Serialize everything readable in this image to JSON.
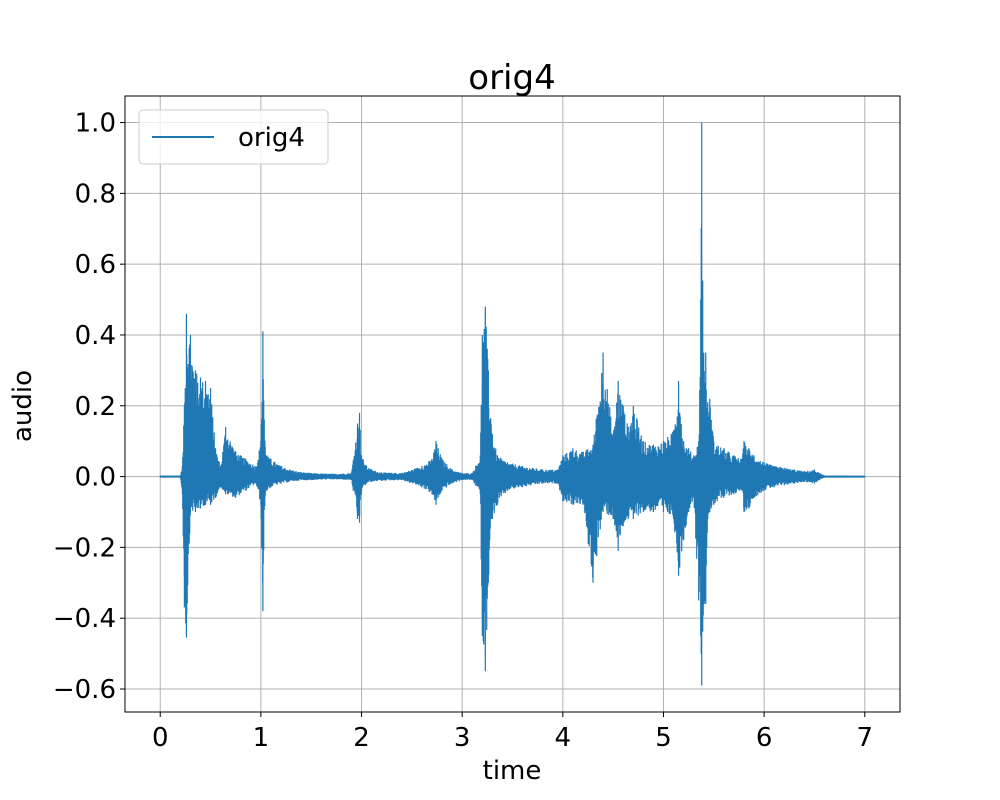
{
  "chart_data": {
    "type": "line",
    "title": "orig4",
    "xlabel": "time",
    "ylabel": "audio",
    "xlim": [
      -0.35,
      7.35
    ],
    "ylim": [
      -0.665,
      1.075
    ],
    "xticks": [
      0,
      1,
      2,
      3,
      4,
      5,
      6,
      7
    ],
    "xtick_labels": [
      "0",
      "1",
      "2",
      "3",
      "4",
      "5",
      "6",
      "7"
    ],
    "yticks": [
      -0.6,
      -0.4,
      -0.2,
      0.0,
      0.2,
      0.4,
      0.6,
      0.8,
      1.0
    ],
    "ytick_labels": [
      "−0.6",
      "−0.4",
      "−0.2",
      "0.0",
      "0.2",
      "0.4",
      "0.6",
      "0.8",
      "1.0"
    ],
    "grid": true,
    "legend_position": "top-left",
    "series": [
      {
        "name": "orig4",
        "color": "#1f77b4",
        "x_range": [
          0,
          7
        ],
        "envelope": {
          "time": [
            0,
            0.2,
            0.22,
            0.24,
            0.26,
            0.3,
            0.35,
            0.4,
            0.45,
            0.5,
            0.55,
            0.6,
            0.65,
            0.75,
            0.85,
            0.95,
            1.0,
            1.02,
            1.04,
            1.06,
            1.1,
            1.2,
            1.35,
            1.5,
            1.7,
            1.9,
            1.96,
            1.98,
            2.0,
            2.05,
            2.1,
            2.2,
            2.4,
            2.6,
            2.7,
            2.74,
            2.8,
            2.9,
            3.0,
            3.1,
            3.18,
            3.2,
            3.23,
            3.26,
            3.3,
            3.35,
            3.45,
            3.6,
            3.8,
            3.95,
            4.0,
            4.1,
            4.2,
            4.3,
            4.4,
            4.5,
            4.55,
            4.6,
            4.65,
            4.7,
            4.8,
            4.9,
            5.0,
            5.1,
            5.15,
            5.2,
            5.25,
            5.3,
            5.35,
            5.37,
            5.38,
            5.4,
            5.42,
            5.44,
            5.46,
            5.5,
            5.6,
            5.7,
            5.78,
            5.8,
            5.85,
            5.9,
            6.0,
            6.1,
            6.2,
            6.3,
            6.4,
            6.5,
            6.55,
            6.6,
            7.0
          ],
          "max": [
            0.002,
            0.003,
            0.03,
            0.2,
            0.46,
            0.4,
            0.3,
            0.28,
            0.27,
            0.25,
            0.08,
            0.03,
            0.14,
            0.07,
            0.05,
            0.03,
            0.1,
            0.41,
            0.1,
            0.06,
            0.05,
            0.03,
            0.015,
            0.01,
            0.008,
            0.01,
            0.15,
            0.18,
            0.06,
            0.03,
            0.02,
            0.012,
            0.01,
            0.03,
            0.05,
            0.1,
            0.05,
            0.02,
            0.01,
            0.01,
            0.06,
            0.4,
            0.48,
            0.3,
            0.12,
            0.06,
            0.04,
            0.03,
            0.02,
            0.02,
            0.06,
            0.08,
            0.07,
            0.09,
            0.35,
            0.12,
            0.27,
            0.2,
            0.14,
            0.2,
            0.1,
            0.09,
            0.1,
            0.13,
            0.27,
            0.1,
            0.08,
            0.06,
            0.1,
            0.5,
            1.0,
            0.35,
            0.35,
            0.21,
            0.22,
            0.1,
            0.08,
            0.06,
            0.05,
            0.1,
            0.08,
            0.06,
            0.04,
            0.03,
            0.025,
            0.02,
            0.015,
            0.02,
            0.01,
            0.003,
            0.002
          ],
          "min": [
            -0.002,
            -0.003,
            -0.05,
            -0.37,
            -0.455,
            -0.1,
            -0.1,
            -0.09,
            -0.08,
            -0.08,
            -0.06,
            -0.03,
            -0.05,
            -0.06,
            -0.04,
            -0.02,
            -0.08,
            -0.38,
            -0.06,
            -0.04,
            -0.03,
            -0.02,
            -0.012,
            -0.01,
            -0.008,
            -0.01,
            -0.12,
            -0.13,
            -0.04,
            -0.02,
            -0.015,
            -0.012,
            -0.01,
            -0.03,
            -0.05,
            -0.08,
            -0.04,
            -0.02,
            -0.01,
            -0.01,
            -0.05,
            -0.45,
            -0.55,
            -0.3,
            -0.12,
            -0.08,
            -0.04,
            -0.03,
            -0.02,
            -0.02,
            -0.07,
            -0.08,
            -0.08,
            -0.3,
            -0.1,
            -0.12,
            -0.21,
            -0.14,
            -0.12,
            -0.12,
            -0.1,
            -0.1,
            -0.1,
            -0.12,
            -0.28,
            -0.18,
            -0.1,
            -0.06,
            -0.35,
            -0.45,
            -0.59,
            -0.36,
            -0.36,
            -0.12,
            -0.1,
            -0.08,
            -0.06,
            -0.05,
            -0.04,
            -0.1,
            -0.09,
            -0.06,
            -0.04,
            -0.03,
            -0.025,
            -0.02,
            -0.015,
            -0.02,
            -0.01,
            -0.003,
            -0.002
          ]
        }
      }
    ]
  }
}
